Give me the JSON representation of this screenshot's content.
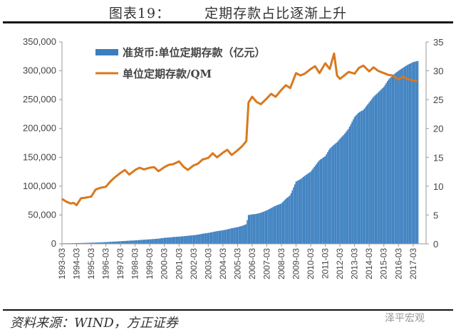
{
  "header": {
    "figure_label": "图表19：",
    "title": "定期存款占比逐渐上升"
  },
  "footer": {
    "source": "资料来源：WIND，方正证券",
    "watermark": "泽平宏观"
  },
  "colors": {
    "bar": "#3a7ebf",
    "line": "#d9781f",
    "axis": "#999999"
  },
  "chart_data": {
    "type": "bar+line",
    "title": "定期存款占比逐渐上升",
    "legend_position": "top-left",
    "legend": [
      {
        "name": "准货币:单位定期存款（亿元）",
        "type": "bar",
        "axis": "left"
      },
      {
        "name": "单位定期存款/QM",
        "type": "line",
        "axis": "right"
      }
    ],
    "left_axis": {
      "ticks": [
        "0",
        "50,000",
        "100,000",
        "150,000",
        "200,000",
        "250,000",
        "300,000",
        "350,000"
      ],
      "ylim": [
        0,
        350000
      ]
    },
    "right_axis": {
      "ticks": [
        "0",
        "5",
        "10",
        "15",
        "20",
        "25",
        "30",
        "35"
      ],
      "ylim": [
        0,
        35
      ]
    },
    "x_tick_labels": [
      "1993-03",
      "1994-03",
      "1995-03",
      "1996-03",
      "1997-03",
      "1998-03",
      "1999-03",
      "2000-03",
      "2001-03",
      "2002-03",
      "2003-03",
      "2004-03",
      "2005-03",
      "2006-03",
      "2007-03",
      "2008-03",
      "2009-03",
      "2010-03",
      "2011-03",
      "2012-03",
      "2013-03",
      "2014-03",
      "2015-03",
      "2016-03",
      "2017-03"
    ],
    "x": [
      1993.2,
      1993.5,
      1993.8,
      1994.0,
      1994.2,
      1994.5,
      1994.8,
      1995.2,
      1995.5,
      1995.8,
      1996.2,
      1996.5,
      1996.8,
      1997.2,
      1997.5,
      1997.8,
      1998.2,
      1998.5,
      1998.8,
      1999.2,
      1999.5,
      1999.8,
      2000.2,
      2000.5,
      2000.8,
      2001.2,
      2001.5,
      2001.8,
      2002.2,
      2002.5,
      2002.8,
      2003.2,
      2003.5,
      2003.8,
      2004.2,
      2004.5,
      2004.8,
      2005.2,
      2005.5,
      2005.8,
      2005.95,
      2006.2,
      2006.5,
      2006.8,
      2007.2,
      2007.5,
      2007.8,
      2008.2,
      2008.5,
      2008.8,
      2009.2,
      2009.5,
      2009.8,
      2010.2,
      2010.5,
      2010.8,
      2011.2,
      2011.5,
      2011.8,
      2012.0,
      2012.2,
      2012.5,
      2012.8,
      2013.2,
      2013.5,
      2013.8,
      2014.2,
      2014.5,
      2014.8,
      2015.2,
      2015.5,
      2015.8,
      2016.2,
      2016.5,
      2016.8,
      2017.2,
      2017.5
    ],
    "series": [
      {
        "name": "准货币:单位定期存款（亿元）",
        "axis": "left",
        "values": [
          900,
          1000,
          1100,
          1200,
          1300,
          1500,
          1700,
          2000,
          2300,
          2600,
          3000,
          3500,
          4000,
          4500,
          5000,
          5500,
          6000,
          6600,
          7200,
          7800,
          8400,
          9000,
          10500,
          11000,
          11800,
          12500,
          13200,
          14000,
          15000,
          16000,
          17500,
          19000,
          20500,
          22000,
          23500,
          25000,
          27000,
          29000,
          31000,
          34000,
          50000,
          51000,
          52000,
          54000,
          58000,
          62000,
          66000,
          70000,
          78000,
          84000,
          108000,
          112000,
          118000,
          125000,
          135000,
          145000,
          152000,
          165000,
          172000,
          176000,
          182000,
          190000,
          200000,
          220000,
          228000,
          232000,
          245000,
          255000,
          262000,
          272000,
          284000,
          292000,
          300000,
          305000,
          310000,
          315000,
          317000
        ]
      },
      {
        "name": "单位定期存款/QM",
        "axis": "right",
        "values": [
          7.8,
          7.3,
          7.0,
          7.1,
          6.7,
          7.9,
          8.0,
          8.2,
          9.4,
          9.7,
          9.9,
          10.8,
          11.5,
          12.3,
          12.8,
          12.0,
          12.8,
          13.2,
          12.9,
          13.2,
          13.3,
          12.6,
          13.3,
          13.7,
          13.8,
          14.3,
          13.4,
          12.8,
          13.6,
          13.9,
          14.6,
          14.9,
          15.7,
          15.0,
          15.8,
          16.3,
          15.4,
          16.2,
          16.9,
          17.8,
          24.5,
          25.5,
          24.6,
          24.2,
          25.2,
          26.0,
          25.5,
          26.7,
          27.5,
          27.0,
          29.6,
          29.2,
          29.5,
          30.3,
          30.8,
          29.6,
          31.3,
          30.3,
          33.0,
          29.2,
          28.6,
          29.2,
          29.8,
          29.5,
          30.5,
          30.9,
          29.9,
          30.6,
          30.0,
          29.6,
          29.3,
          29.2,
          28.5,
          29.0,
          28.6,
          28.3,
          28.2
        ]
      }
    ]
  }
}
